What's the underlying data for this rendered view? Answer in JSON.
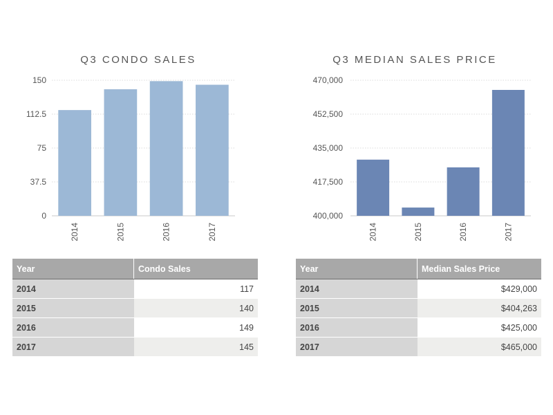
{
  "colors": {
    "sales_bar": "#9cb8d6",
    "price_bar": "#6b86b4"
  },
  "chart_data": [
    {
      "type": "bar",
      "title": "Q3 CONDO SALES",
      "categories": [
        "2014",
        "2015",
        "2016",
        "2017"
      ],
      "values": [
        117,
        140,
        149,
        145
      ],
      "ylim": [
        0,
        150
      ],
      "yticks": [
        "0",
        "37.5",
        "75",
        "112.5",
        "150"
      ],
      "ytick_values": [
        0,
        37.5,
        75,
        112.5,
        150
      ],
      "grid": true
    },
    {
      "type": "bar",
      "title": "Q3 MEDIAN SALES PRICE",
      "categories": [
        "2014",
        "2015",
        "2016",
        "2017"
      ],
      "values": [
        429000,
        404263,
        425000,
        465000
      ],
      "ylim": [
        400000,
        470000
      ],
      "yticks": [
        "400,000",
        "417,500",
        "435,000",
        "452,500",
        "470,000"
      ],
      "ytick_values": [
        400000,
        417500,
        435000,
        452500,
        470000
      ],
      "grid": true
    }
  ],
  "tables": {
    "sales": {
      "headers": [
        "Year",
        "Condo Sales"
      ],
      "rows": [
        [
          "2014",
          "117"
        ],
        [
          "2015",
          "140"
        ],
        [
          "2016",
          "149"
        ],
        [
          "2017",
          "145"
        ]
      ]
    },
    "price": {
      "headers": [
        "Year",
        "Median Sales Price"
      ],
      "rows": [
        [
          "2014",
          "$429,000"
        ],
        [
          "2015",
          "$404,263"
        ],
        [
          "2016",
          "$425,000"
        ],
        [
          "2017",
          "$465,000"
        ]
      ]
    }
  }
}
